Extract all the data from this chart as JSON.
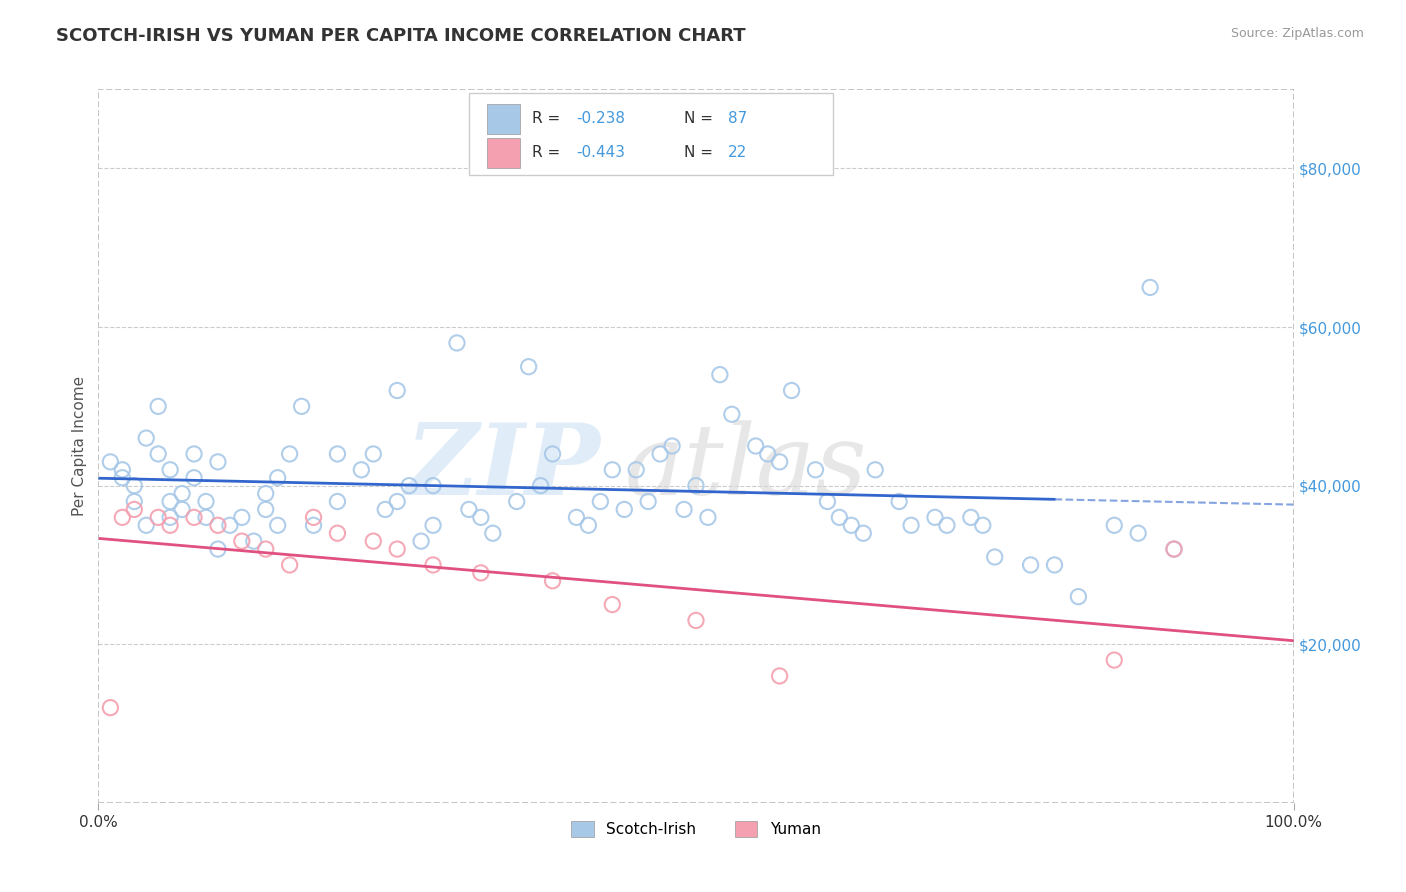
{
  "title": "SCOTCH-IRISH VS YUMAN PER CAPITA INCOME CORRELATION CHART",
  "source_text": "Source: ZipAtlas.com",
  "ylabel": "Per Capita Income",
  "xlim": [
    0,
    100
  ],
  "ylim": [
    0,
    90000
  ],
  "yticks": [
    0,
    20000,
    40000,
    60000,
    80000
  ],
  "ytick_labels": [
    "",
    "$20,000",
    "$40,000",
    "$60,000",
    "$80,000"
  ],
  "legend_label_series1": "Scotch-Irish",
  "legend_label_series2": "Yuman",
  "color_blue": "#a8c8e8",
  "color_pink": "#f4a0b0",
  "color_line_blue": "#3366cc",
  "color_line_pink": "#e05080",
  "R1": -0.238,
  "N1": 87,
  "R2": -0.443,
  "N2": 22,
  "watermark_zip": "ZIP",
  "watermark_atlas": "atlas",
  "background_color": "#ffffff",
  "grid_color": "#cccccc",
  "title_color": "#333333",
  "title_fontsize": 13,
  "axis_label_color": "#4499dd",
  "blue_line_solid_end": 80,
  "scotch_irish_x": [
    1,
    2,
    2,
    3,
    3,
    4,
    4,
    5,
    5,
    6,
    6,
    6,
    7,
    7,
    8,
    8,
    9,
    9,
    10,
    10,
    11,
    12,
    13,
    14,
    14,
    15,
    15,
    16,
    17,
    18,
    20,
    20,
    22,
    23,
    24,
    25,
    25,
    26,
    27,
    28,
    28,
    30,
    31,
    32,
    33,
    35,
    36,
    37,
    38,
    40,
    41,
    42,
    43,
    44,
    45,
    46,
    47,
    48,
    49,
    50,
    51,
    52,
    53,
    55,
    56,
    57,
    58,
    60,
    61,
    62,
    63,
    64,
    65,
    67,
    68,
    70,
    71,
    73,
    74,
    75,
    78,
    80,
    82,
    85,
    87,
    88,
    90
  ],
  "scotch_irish_y": [
    43000,
    42000,
    41000,
    38000,
    40000,
    46000,
    35000,
    44000,
    50000,
    38000,
    42000,
    36000,
    39000,
    37000,
    44000,
    41000,
    38000,
    36000,
    32000,
    43000,
    35000,
    36000,
    33000,
    39000,
    37000,
    41000,
    35000,
    44000,
    50000,
    35000,
    44000,
    38000,
    42000,
    44000,
    37000,
    52000,
    38000,
    40000,
    33000,
    40000,
    35000,
    58000,
    37000,
    36000,
    34000,
    38000,
    55000,
    40000,
    44000,
    36000,
    35000,
    38000,
    42000,
    37000,
    42000,
    38000,
    44000,
    45000,
    37000,
    40000,
    36000,
    54000,
    49000,
    45000,
    44000,
    43000,
    52000,
    42000,
    38000,
    36000,
    35000,
    34000,
    42000,
    38000,
    35000,
    36000,
    35000,
    36000,
    35000,
    31000,
    30000,
    30000,
    26000,
    35000,
    34000,
    65000,
    32000
  ],
  "yuman_x": [
    1,
    2,
    3,
    5,
    6,
    8,
    10,
    12,
    14,
    16,
    18,
    20,
    23,
    25,
    28,
    32,
    38,
    43,
    50,
    57,
    85,
    90
  ],
  "yuman_y": [
    12000,
    36000,
    37000,
    36000,
    35000,
    36000,
    35000,
    33000,
    32000,
    30000,
    36000,
    34000,
    33000,
    32000,
    30000,
    29000,
    28000,
    25000,
    23000,
    16000,
    18000,
    32000
  ]
}
